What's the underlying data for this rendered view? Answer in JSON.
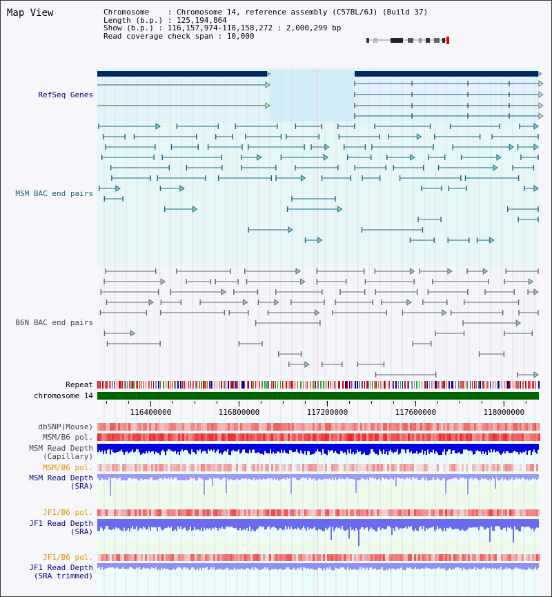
{
  "map_title": "Map View",
  "info": {
    "chromosome": "Chromosome    : Chromosome 14, reference assembly (C57BL/6J) (Build 37)",
    "length": "Length (b.p.) : 125,194,864",
    "show": "Show (b.p.) : 116,157,974-118,158,272 : 2,000,299 bp",
    "coverage": "Read coverage check span : 10,000"
  },
  "tracks": {
    "refseq": "RefSeq Genes",
    "msm_bac": "MSM BAC end pairs",
    "b6n_bac": "B6N BAC end pairs",
    "repeat": "Repeat",
    "chromosome": "chromosome 14",
    "dbsnp": "dbSNP(Mouse)",
    "msm_b6_pol_1": "MSM/B6 pol.",
    "msm_depth_cap_1": "MSM Read Depth",
    "msm_depth_cap_2": "(Capillary)",
    "msm_b6_pol_2": "MSM/B6 pol.",
    "msm_depth_sra_1": "MSM Read Depth",
    "msm_depth_sra_2": "(SRA)",
    "jf1_b6_pol_1": "JF1/B6 pol.",
    "jf1_depth_sra_1": "JF1 Read Depth",
    "jf1_depth_sra_2": "(SRA)",
    "jf1_b6_pol_2": "JF1/B6 pol.",
    "jf1_depth_trim_1": "JF1 Read Depth",
    "jf1_depth_trim_2": "(SRA trimmed)"
  },
  "axis": {
    "ticks": [
      "116400000",
      "116800000",
      "117200000",
      "117600000",
      "118000000"
    ],
    "tick_values": [
      116400000,
      116800000,
      117200000,
      117600000,
      118000000
    ],
    "range_start": 116157974,
    "range_end": 118158272
  },
  "colors": {
    "refseq_bar": "#002a5c",
    "msm_feature": "#1a6680",
    "b6n_feature": "#666666",
    "label_blue": "#00008b",
    "label_teal": "#1b5e7a",
    "label_gray": "#444444",
    "label_orange": "#e69500",
    "chromosome_bar": "#006400",
    "depth_dark": "#0000e0",
    "depth_light": "#8080f0",
    "snp_red": "#e83030"
  }
}
